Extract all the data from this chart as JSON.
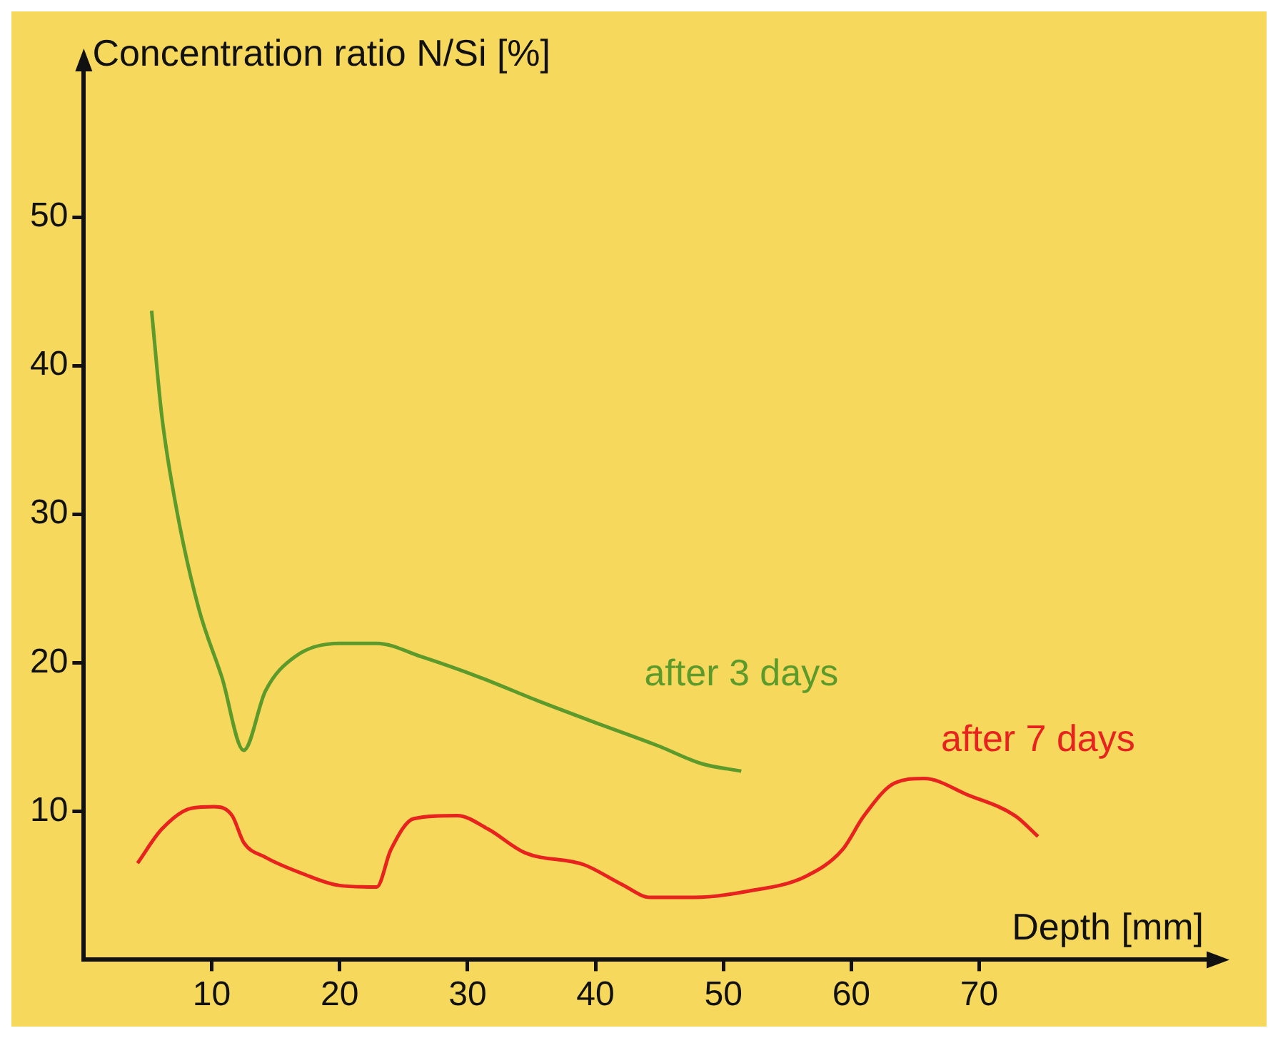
{
  "chart_data": {
    "type": "line",
    "xlabel": "Depth [mm]",
    "ylabel": "Concentration ratio N/Si [%]",
    "xlim": [
      0,
      88
    ],
    "xticks": [
      10,
      20,
      30,
      40,
      50,
      60,
      70
    ],
    "ylim": [
      0,
      60
    ],
    "yticks": [
      10,
      20,
      30,
      40,
      50
    ],
    "series": [
      {
        "name": "after 3 days",
        "color": "#5c9a2c",
        "x": [
          5.3,
          6.1,
          7.3,
          9.0,
          10.8,
          12.5,
          14.2,
          16.5,
          20,
          22.9,
          26.4,
          31,
          35.6,
          40.2,
          44.9,
          48.3,
          51.4
        ],
        "values": [
          43.7,
          36.6,
          30.1,
          23.6,
          19,
          14.1,
          18.1,
          20.4,
          21.3,
          21.3,
          20.4,
          19,
          17.4,
          15.9,
          14.4,
          13.2,
          12.7
        ]
      },
      {
        "name": "after 7 days",
        "color": "#e8221e",
        "x": [
          4.2,
          6.1,
          8.4,
          10.2,
          11.6,
          12.5,
          14.2,
          17.1,
          20,
          22.9,
          24,
          25.8,
          29.2,
          31.6,
          34.5,
          39.1,
          42,
          44.3,
          47.7,
          51.8,
          56.4,
          59.3,
          61,
          63.4,
          65.7,
          69.1,
          72.8,
          74.6
        ],
        "values": [
          6.5,
          8.8,
          10.2,
          10.3,
          9.7,
          7.9,
          6.9,
          5.8,
          5.0,
          4.9,
          7.4,
          9.5,
          9.7,
          8.8,
          7.2,
          6.4,
          5.1,
          4.2,
          4.2,
          4.6,
          5.6,
          7.4,
          9.7,
          11.9,
          12.2,
          11.1,
          9.7,
          8.3
        ]
      }
    ],
    "marker": "none",
    "line_style": "solid",
    "legend": false
  }
}
